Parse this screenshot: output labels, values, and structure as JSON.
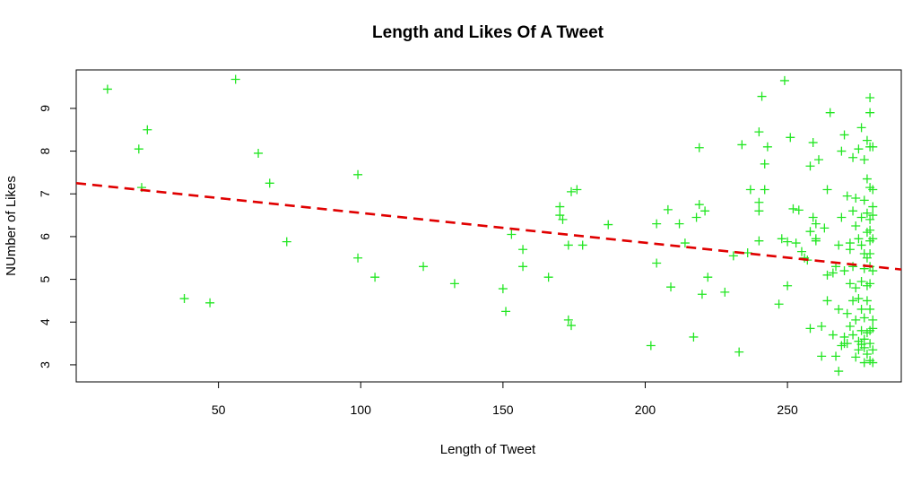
{
  "chart_data": {
    "type": "scatter",
    "title": "Length and Likes Of A Tweet",
    "xlabel": "Length of Tweet",
    "ylabel": "NUmber of Likes",
    "xlim": [
      0,
      290
    ],
    "ylim": [
      2.6,
      9.9
    ],
    "x_ticks": [
      50,
      100,
      150,
      200,
      250
    ],
    "y_ticks": [
      3,
      4,
      5,
      6,
      7,
      8,
      9
    ],
    "point_color": "#22e622",
    "marker": "plus",
    "trend_line": {
      "color": "#e00000",
      "style": "dashed",
      "x": [
        0,
        290
      ],
      "y": [
        7.25,
        5.23
      ]
    },
    "points": [
      [
        11,
        9.45
      ],
      [
        22,
        8.05
      ],
      [
        23,
        7.15
      ],
      [
        25,
        8.5
      ],
      [
        38,
        4.55
      ],
      [
        47,
        4.45
      ],
      [
        56,
        9.68
      ],
      [
        64,
        7.95
      ],
      [
        68,
        7.25
      ],
      [
        74,
        5.88
      ],
      [
        99,
        7.45
      ],
      [
        99,
        5.5
      ],
      [
        105,
        5.05
      ],
      [
        122,
        5.3
      ],
      [
        133,
        4.9
      ],
      [
        150,
        4.78
      ],
      [
        151,
        4.25
      ],
      [
        153,
        6.05
      ],
      [
        157,
        5.7
      ],
      [
        157,
        5.3
      ],
      [
        166,
        5.05
      ],
      [
        170,
        6.7
      ],
      [
        170,
        6.5
      ],
      [
        171,
        6.4
      ],
      [
        173,
        5.8
      ],
      [
        173,
        4.05
      ],
      [
        174,
        3.92
      ],
      [
        174,
        7.05
      ],
      [
        176,
        7.1
      ],
      [
        178,
        5.8
      ],
      [
        187,
        6.28
      ],
      [
        202,
        3.45
      ],
      [
        204,
        6.3
      ],
      [
        204,
        5.38
      ],
      [
        208,
        6.63
      ],
      [
        209,
        4.82
      ],
      [
        212,
        6.3
      ],
      [
        214,
        5.85
      ],
      [
        217,
        3.65
      ],
      [
        218,
        6.45
      ],
      [
        219,
        8.08
      ],
      [
        219,
        6.75
      ],
      [
        220,
        4.65
      ],
      [
        221,
        6.6
      ],
      [
        222,
        5.05
      ],
      [
        228,
        4.7
      ],
      [
        231,
        5.55
      ],
      [
        233,
        3.3
      ],
      [
        234,
        8.15
      ],
      [
        236,
        5.62
      ],
      [
        237,
        7.1
      ],
      [
        240,
        8.45
      ],
      [
        240,
        6.8
      ],
      [
        240,
        6.6
      ],
      [
        240,
        5.9
      ],
      [
        241,
        9.28
      ],
      [
        242,
        7.7
      ],
      [
        242,
        7.1
      ],
      [
        243,
        8.1
      ],
      [
        247,
        4.42
      ],
      [
        248,
        5.95
      ],
      [
        249,
        9.65
      ],
      [
        250,
        5.88
      ],
      [
        250,
        4.85
      ],
      [
        251,
        8.32
      ],
      [
        252,
        6.65
      ],
      [
        253,
        5.85
      ],
      [
        254,
        6.62
      ],
      [
        255,
        5.65
      ],
      [
        256,
        5.5
      ],
      [
        257,
        5.45
      ],
      [
        258,
        6.12
      ],
      [
        258,
        3.85
      ],
      [
        258,
        7.65
      ],
      [
        259,
        8.2
      ],
      [
        259,
        6.45
      ],
      [
        260,
        5.9
      ],
      [
        260,
        6.3
      ],
      [
        260,
        5.95
      ],
      [
        261,
        7.8
      ],
      [
        262,
        3.9
      ],
      [
        262,
        3.2
      ],
      [
        263,
        6.2
      ],
      [
        264,
        7.1
      ],
      [
        264,
        4.5
      ],
      [
        264,
        5.1
      ],
      [
        265,
        8.9
      ],
      [
        266,
        3.7
      ],
      [
        266,
        5.15
      ],
      [
        267,
        3.2
      ],
      [
        267,
        5.3
      ],
      [
        268,
        2.85
      ],
      [
        268,
        4.3
      ],
      [
        268,
        5.8
      ],
      [
        269,
        8.0
      ],
      [
        269,
        6.45
      ],
      [
        269,
        3.45
      ],
      [
        270,
        3.5
      ],
      [
        270,
        3.65
      ],
      [
        270,
        5.2
      ],
      [
        270,
        8.38
      ],
      [
        271,
        6.95
      ],
      [
        271,
        4.2
      ],
      [
        271,
        3.5
      ],
      [
        272,
        5.85
      ],
      [
        272,
        4.9
      ],
      [
        272,
        3.9
      ],
      [
        272,
        5.7
      ],
      [
        273,
        7.85
      ],
      [
        273,
        6.6
      ],
      [
        273,
        4.5
      ],
      [
        273,
        3.7
      ],
      [
        273,
        5.3
      ],
      [
        274,
        4.8
      ],
      [
        274,
        3.18
      ],
      [
        274,
        4.05
      ],
      [
        274,
        6.9
      ],
      [
        274,
        6.25
      ],
      [
        275,
        8.05
      ],
      [
        275,
        5.95
      ],
      [
        275,
        4.55
      ],
      [
        275,
        3.35
      ],
      [
        275,
        3.55
      ],
      [
        276,
        5.8
      ],
      [
        276,
        4.95
      ],
      [
        276,
        3.8
      ],
      [
        276,
        4.3
      ],
      [
        276,
        6.45
      ],
      [
        276,
        3.48
      ],
      [
        276,
        8.55
      ],
      [
        277,
        5.6
      ],
      [
        277,
        5.25
      ],
      [
        277,
        4.1
      ],
      [
        277,
        3.6
      ],
      [
        277,
        3.05
      ],
      [
        277,
        6.85
      ],
      [
        277,
        3.4
      ],
      [
        277,
        7.8
      ],
      [
        278,
        6.1
      ],
      [
        278,
        5.5
      ],
      [
        278,
        4.85
      ],
      [
        278,
        4.5
      ],
      [
        278,
        3.75
      ],
      [
        278,
        3.25
      ],
      [
        278,
        7.35
      ],
      [
        278,
        6.55
      ],
      [
        278,
        8.25
      ],
      [
        279,
        9.25
      ],
      [
        279,
        8.9
      ],
      [
        279,
        8.1
      ],
      [
        279,
        7.15
      ],
      [
        279,
        6.4
      ],
      [
        279,
        6.15
      ],
      [
        279,
        5.9
      ],
      [
        279,
        5.6
      ],
      [
        279,
        5.3
      ],
      [
        279,
        4.9
      ],
      [
        279,
        4.3
      ],
      [
        279,
        3.8
      ],
      [
        279,
        3.5
      ],
      [
        279,
        3.1
      ],
      [
        280,
        8.1
      ],
      [
        280,
        6.5
      ],
      [
        280,
        5.2
      ],
      [
        280,
        3.35
      ],
      [
        280,
        3.85
      ],
      [
        280,
        3.05
      ],
      [
        280,
        4.05
      ],
      [
        280,
        7.1
      ],
      [
        280,
        5.95
      ],
      [
        280,
        6.7
      ]
    ]
  }
}
